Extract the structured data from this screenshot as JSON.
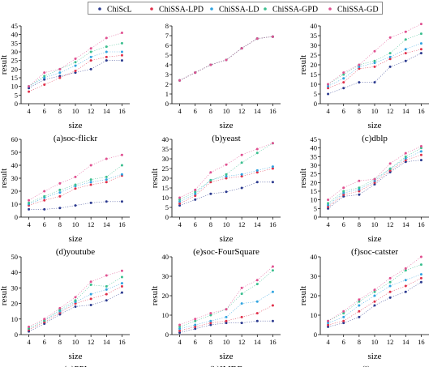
{
  "legend": {
    "items": [
      {
        "name": "ChiScL",
        "color": "#2b3a8f"
      },
      {
        "name": "ChiSSA-LPD",
        "color": "#e0304a"
      },
      {
        "name": "ChiSSA-LD",
        "color": "#2fa3e0"
      },
      {
        "name": "ChiSSA-GPD",
        "color": "#3bbf8f"
      },
      {
        "name": "ChiSSA-GD",
        "color": "#e05090"
      }
    ]
  },
  "chart_data": [
    {
      "type": "scatter",
      "title": "(a)soc-flickr",
      "xlabel": "size",
      "ylabel": "result",
      "x": [
        4,
        6,
        8,
        10,
        12,
        14,
        16
      ],
      "xticks": [
        "4",
        "6",
        "8",
        "10",
        "12",
        "14",
        "16"
      ],
      "ylim": [
        0,
        45
      ],
      "yticks": [
        0,
        5,
        10,
        15,
        20,
        25,
        30,
        35,
        40,
        45
      ],
      "series": [
        {
          "name": "ChiScL",
          "values": [
            9,
            14,
            16,
            18,
            20,
            25,
            25
          ]
        },
        {
          "name": "ChiSSA-LPD",
          "values": [
            7,
            11,
            15,
            19,
            25,
            27,
            28
          ]
        },
        {
          "name": "ChiSSA-LD",
          "values": [
            10,
            15,
            18,
            22,
            27,
            30,
            30
          ]
        },
        {
          "name": "ChiSSA-GPD",
          "values": [
            10,
            16,
            20,
            24,
            30,
            33,
            35
          ]
        },
        {
          "name": "ChiSSA-GD",
          "values": [
            10,
            18,
            20,
            26,
            32,
            38,
            41
          ]
        }
      ]
    },
    {
      "type": "scatter",
      "title": "(b)yeast",
      "xlabel": "size",
      "ylabel": "",
      "x": [
        4,
        6,
        8,
        10,
        12,
        14,
        16
      ],
      "xticks": [
        "4",
        "6",
        "8",
        "10",
        "12",
        "14",
        "16"
      ],
      "ylim": [
        0,
        8
      ],
      "yticks": [
        0,
        1,
        2,
        3,
        4,
        5,
        6,
        7,
        8
      ],
      "series": [
        {
          "name": "ChiScL",
          "values": [
            2.4,
            3.2,
            4,
            4.5,
            5.7,
            6.7,
            6.9
          ]
        },
        {
          "name": "ChiSSA-LPD",
          "values": [
            2.4,
            3.2,
            4,
            4.5,
            5.7,
            6.7,
            6.9
          ]
        },
        {
          "name": "ChiSSA-LD",
          "values": [
            2.4,
            3.2,
            4,
            4.5,
            5.7,
            6.7,
            6.9
          ]
        },
        {
          "name": "ChiSSA-GPD",
          "values": [
            2.4,
            3.2,
            4,
            4.5,
            5.7,
            6.7,
            6.9
          ]
        },
        {
          "name": "ChiSSA-GD",
          "values": [
            2.4,
            3.2,
            4,
            4.5,
            5.7,
            6.7,
            6.9
          ]
        }
      ]
    },
    {
      "type": "scatter",
      "title": "(c)dblp",
      "xlabel": "size",
      "ylabel": "result",
      "x": [
        4,
        6,
        8,
        10,
        12,
        14,
        16
      ],
      "xticks": [
        "4",
        "6",
        "8",
        "10",
        "12",
        "14",
        "16"
      ],
      "ylim": [
        0,
        40
      ],
      "yticks": [
        0,
        5,
        10,
        15,
        20,
        25,
        30,
        35,
        40
      ],
      "series": [
        {
          "name": "ChiScL",
          "values": [
            5,
            8,
            11,
            11,
            19,
            22,
            26
          ]
        },
        {
          "name": "ChiSSA-LPD",
          "values": [
            8,
            11,
            18,
            19,
            23,
            26,
            28
          ]
        },
        {
          "name": "ChiSSA-LD",
          "values": [
            9,
            13,
            19,
            21,
            24,
            28,
            31
          ]
        },
        {
          "name": "ChiSSA-GPD",
          "values": [
            10,
            15,
            20,
            22,
            26,
            33,
            36
          ]
        },
        {
          "name": "ChiSSA-GD",
          "values": [
            10,
            16,
            20,
            27,
            34,
            37,
            41
          ]
        }
      ]
    },
    {
      "type": "scatter",
      "title": "(d)youtube",
      "xlabel": "size",
      "ylabel": "result",
      "x": [
        4,
        6,
        8,
        10,
        12,
        14,
        16
      ],
      "xticks": [
        "4",
        "6",
        "8",
        "10",
        "12",
        "14",
        "16"
      ],
      "ylim": [
        0,
        60
      ],
      "yticks": [
        0,
        10,
        20,
        30,
        40,
        50,
        60
      ],
      "series": [
        {
          "name": "ChiScL",
          "values": [
            6,
            6,
            7,
            9,
            11,
            12,
            12
          ]
        },
        {
          "name": "ChiSSA-LPD",
          "values": [
            9,
            13,
            16,
            22,
            25,
            27,
            32
          ]
        },
        {
          "name": "ChiSSA-LD",
          "values": [
            10,
            15,
            19,
            24,
            27,
            29,
            33
          ]
        },
        {
          "name": "ChiSSA-GPD",
          "values": [
            11,
            16,
            21,
            25,
            29,
            31,
            40
          ]
        },
        {
          "name": "ChiSSA-GD",
          "values": [
            13,
            20,
            26,
            31,
            40,
            45,
            48
          ]
        }
      ]
    },
    {
      "type": "scatter",
      "title": "(e)soc-FourSquare",
      "xlabel": "size",
      "ylabel": "result",
      "x": [
        4,
        6,
        8,
        10,
        12,
        14,
        16
      ],
      "xticks": [
        "4",
        "6",
        "8",
        "10",
        "12",
        "14",
        "16"
      ],
      "ylim": [
        0,
        40
      ],
      "yticks": [
        0,
        5,
        10,
        15,
        20,
        25,
        30,
        35,
        40
      ],
      "series": [
        {
          "name": "ChiScL",
          "values": [
            6,
            9,
            12,
            13,
            15,
            18,
            18
          ]
        },
        {
          "name": "ChiSSA-LPD",
          "values": [
            7,
            11,
            18,
            20,
            21,
            23,
            25
          ]
        },
        {
          "name": "ChiSSA-LD",
          "values": [
            8,
            12,
            19,
            21,
            22,
            24,
            26
          ]
        },
        {
          "name": "ChiSSA-GPD",
          "values": [
            9,
            13,
            19,
            22,
            28,
            33,
            38
          ]
        },
        {
          "name": "ChiSSA-GD",
          "values": [
            10,
            14,
            23,
            27,
            32,
            35,
            38
          ]
        }
      ]
    },
    {
      "type": "scatter",
      "title": "(f)soc-catster",
      "xlabel": "size",
      "ylabel": "result",
      "x": [
        4,
        6,
        8,
        10,
        12,
        14,
        16
      ],
      "xticks": [
        "4",
        "6",
        "8",
        "10",
        "12",
        "14",
        "16"
      ],
      "ylim": [
        0,
        45
      ],
      "yticks": [
        0,
        5,
        10,
        15,
        20,
        25,
        30,
        35,
        40,
        45
      ],
      "series": [
        {
          "name": "ChiScL",
          "values": [
            5,
            12,
            13,
            19,
            26,
            32,
            33
          ]
        },
        {
          "name": "ChiSSA-LPD",
          "values": [
            6,
            13,
            15,
            20,
            27,
            33,
            36
          ]
        },
        {
          "name": "ChiSSA-LD",
          "values": [
            7,
            14,
            16,
            21,
            28,
            34,
            38
          ]
        },
        {
          "name": "ChiSSA-GPD",
          "values": [
            8,
            15,
            17,
            22,
            28,
            35,
            40
          ]
        },
        {
          "name": "ChiSSA-GD",
          "values": [
            10,
            17,
            21,
            22,
            31,
            37,
            41
          ]
        }
      ]
    },
    {
      "type": "scatter",
      "title": "(g)PPI",
      "xlabel": "size",
      "ylabel": "result",
      "x": [
        4,
        6,
        8,
        10,
        12,
        14,
        16
      ],
      "xticks": [
        "4",
        "6",
        "8",
        "10",
        "12",
        "14",
        "16"
      ],
      "ylim": [
        0,
        50
      ],
      "yticks": [
        0,
        10,
        20,
        30,
        40,
        50
      ],
      "series": [
        {
          "name": "ChiScL",
          "values": [
            2,
            7,
            13,
            18,
            19,
            22,
            27
          ]
        },
        {
          "name": "ChiSSA-LPD",
          "values": [
            3,
            8,
            14,
            20,
            23,
            26,
            31
          ]
        },
        {
          "name": "ChiSSA-LD",
          "values": [
            4,
            9,
            15,
            21,
            26,
            29,
            33
          ]
        },
        {
          "name": "ChiSSA-GPD",
          "values": [
            4,
            9,
            16,
            22,
            32,
            31,
            37
          ]
        },
        {
          "name": "ChiSSA-GD",
          "values": [
            5,
            10,
            17,
            24,
            34,
            38,
            41
          ]
        }
      ]
    },
    {
      "type": "scatter",
      "title": "(h)IMDB",
      "xlabel": "size",
      "ylabel": "result",
      "x": [
        4,
        6,
        8,
        10,
        12,
        14,
        16
      ],
      "xticks": [
        "4",
        "6",
        "8",
        "10",
        "12",
        "14",
        "16"
      ],
      "ylim": [
        0,
        40
      ],
      "yticks": [
        0,
        10,
        20,
        30,
        40
      ],
      "series": [
        {
          "name": "ChiScL",
          "values": [
            1,
            3,
            5,
            6,
            6,
            7,
            7
          ]
        },
        {
          "name": "ChiSSA-LPD",
          "values": [
            2,
            4,
            6,
            7,
            9,
            11,
            15
          ]
        },
        {
          "name": "ChiSSA-LD",
          "values": [
            3,
            5,
            7,
            9,
            16,
            17,
            22
          ]
        },
        {
          "name": "ChiSSA-GPD",
          "values": [
            4,
            7,
            10,
            13,
            21,
            26,
            33
          ]
        },
        {
          "name": "ChiSSA-GD",
          "values": [
            5,
            8,
            11,
            13,
            24,
            28,
            35
          ]
        }
      ]
    },
    {
      "type": "scatter",
      "title": "(i)yago",
      "xlabel": "size",
      "ylabel": "result",
      "x": [
        4,
        6,
        8,
        10,
        12,
        14,
        16
      ],
      "xticks": [
        "4",
        "6",
        "8",
        "10",
        "12",
        "14",
        "16"
      ],
      "ylim": [
        0,
        40
      ],
      "yticks": [
        0,
        10,
        20,
        30,
        40
      ],
      "series": [
        {
          "name": "ChiScL",
          "values": [
            4,
            6,
            9,
            15,
            19,
            22,
            27
          ]
        },
        {
          "name": "ChiSSA-LPD",
          "values": [
            5,
            7,
            12,
            17,
            22,
            25,
            29
          ]
        },
        {
          "name": "ChiSSA-LD",
          "values": [
            6,
            9,
            15,
            20,
            25,
            28,
            31
          ]
        },
        {
          "name": "ChiSSA-GPD",
          "values": [
            7,
            11,
            17,
            22,
            27,
            33,
            36
          ]
        },
        {
          "name": "ChiSSA-GD",
          "values": [
            7,
            12,
            18,
            23,
            29,
            34,
            40
          ]
        }
      ]
    }
  ]
}
